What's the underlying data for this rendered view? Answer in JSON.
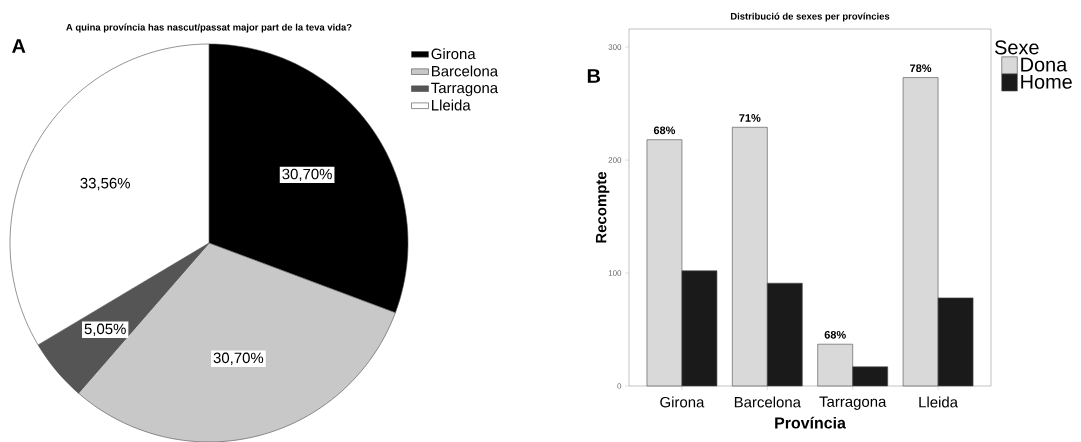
{
  "chart_data": [
    {
      "type": "pie",
      "title": "A quina província has nascut/passat major part de la teva vida?",
      "categories": [
        "Girona",
        "Barcelona",
        "Tarragona",
        "Lleida"
      ],
      "values": [
        30.7,
        30.7,
        5.05,
        33.56
      ],
      "colors": [
        "#000000",
        "#c8c8c8",
        "#555555",
        "#ffffff"
      ],
      "value_labels": [
        "30,70%",
        "30,70%",
        "5,05%",
        "33,56%"
      ],
      "legend": "top right",
      "annotations": [
        "A"
      ]
    },
    {
      "type": "bar",
      "title": "Distribució de sexes per províncies",
      "categories": [
        "Girona",
        "Barcelona",
        "Tarragona",
        "Lleida"
      ],
      "xlabel": "Província",
      "ylabel": "Recompte",
      "legend_title": "Sexe",
      "legend": "right",
      "ylim": [
        0,
        316
      ],
      "yticks": [
        0,
        100,
        200,
        300
      ],
      "series": [
        {
          "name": "Dona",
          "color": "#d9d9d9",
          "values": [
            218,
            229,
            37,
            273
          ]
        },
        {
          "name": "Home",
          "color": "#1a1a1a",
          "values": [
            102,
            91,
            17,
            78
          ]
        }
      ],
      "annotations": [
        "B",
        {
          "text": "68%",
          "x": "Girona",
          "y": 218
        },
        {
          "text": "71%",
          "x": "Barcelona",
          "y": 229
        },
        {
          "text": "68%",
          "x": "Tarragona",
          "y": 37
        },
        {
          "text": "78%",
          "x": "Lleida",
          "y": 273
        }
      ]
    }
  ]
}
